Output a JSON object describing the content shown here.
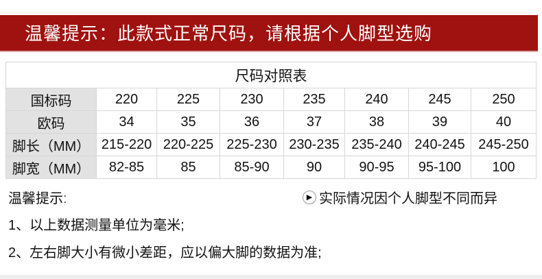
{
  "banner": "温馨提示：此款式正常尺码，请根据个人脚型选购",
  "table": {
    "title": "尺码对照表",
    "rows": [
      {
        "label": "国标码",
        "values": [
          "220",
          "225",
          "230",
          "235",
          "240",
          "245",
          "250"
        ]
      },
      {
        "label": "欧码",
        "values": [
          "34",
          "35",
          "36",
          "37",
          "38",
          "39",
          "40"
        ]
      },
      {
        "label": "脚长（MM）",
        "values": [
          "215-220",
          "220-225",
          "225-230",
          "230-235",
          "235-240",
          "240-245",
          "245-250"
        ]
      },
      {
        "label": "脚宽（MM）",
        "values": [
          "82-85",
          "85",
          "85-90",
          "90",
          "90-95",
          "95-100",
          "100"
        ]
      }
    ]
  },
  "tips": {
    "heading": "温馨提示",
    "colon": ":",
    "side_note": "实际情况因个人脚型不同而异",
    "side_icon": "chevron-right-circle-icon",
    "items": [
      "1、以上数据测量单位为毫米;",
      "2、左右脚大小有微小差距，应以偏大脚的数据为准;"
    ]
  },
  "colors": {
    "banner": "#a0120f",
    "header_cell": "#e2e2e2"
  }
}
